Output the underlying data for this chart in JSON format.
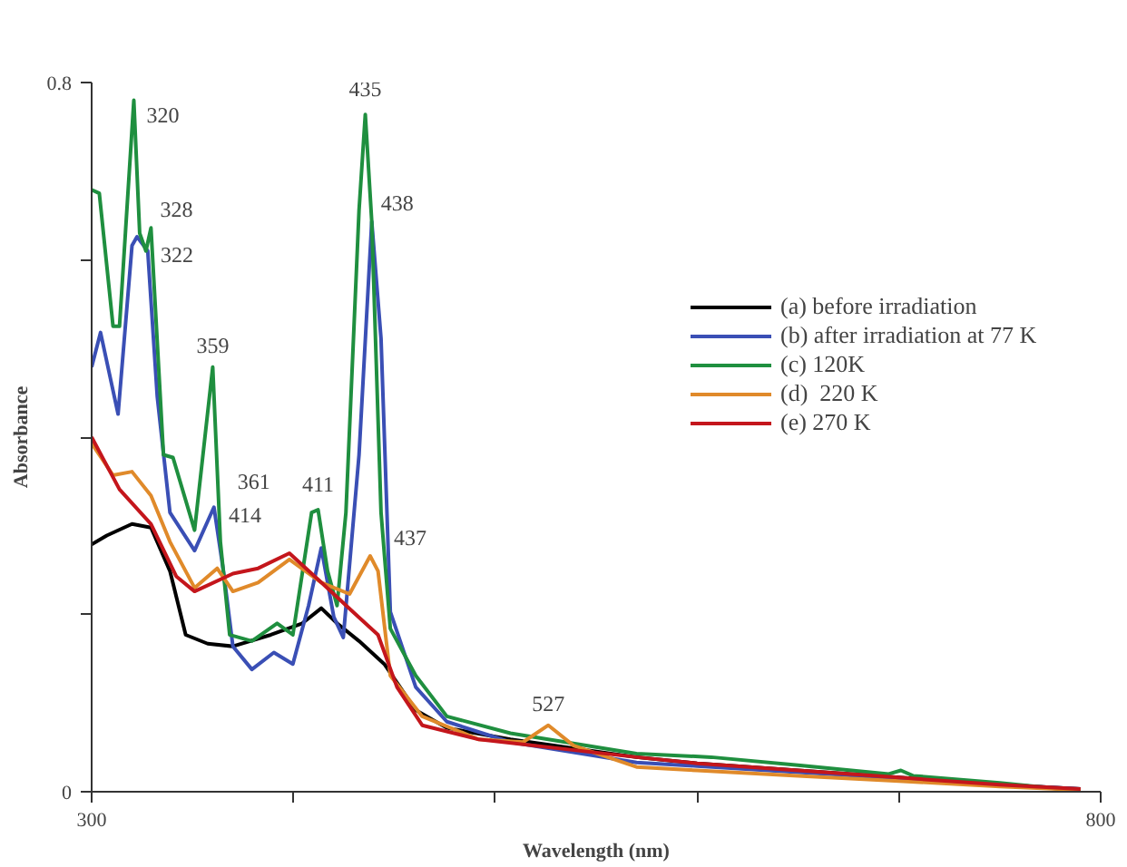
{
  "chart_data": {
    "type": "line",
    "xlabel": "Wavelength (nm)",
    "ylabel": "Absorbance",
    "xlim": [
      300,
      800
    ],
    "ylim": [
      0,
      0.8
    ],
    "xticks": [
      300,
      {
        "value": 400,
        "label": null
      },
      {
        "value": 500,
        "label": null
      },
      {
        "value": 600,
        "label": null
      },
      {
        "value": 700,
        "label": null
      },
      800
    ],
    "yticks": [
      0,
      {
        "value": 0.2,
        "label": null
      },
      {
        "value": 0.4,
        "label": null
      },
      {
        "value": 0.6,
        "label": null
      },
      0.8
    ],
    "grid": false,
    "legend": "right",
    "marker": "none",
    "line_style": "solid",
    "series": [
      {
        "name": "(a) before irradiation",
        "color": "#000000",
        "x": [
          300,
          307.5,
          320,
          329.4,
          338.8,
          346.6,
          357.5,
          370,
          388.8,
          404.4,
          413.8,
          421.6,
          432.5,
          445,
          460.6,
          476,
          507.5,
          570,
          600,
          650,
          700,
          750,
          790
        ],
        "values": [
          0.279,
          0.289,
          0.302,
          0.298,
          0.249,
          0.177,
          0.167,
          0.164,
          0.177,
          0.19,
          0.207,
          0.19,
          0.17,
          0.144,
          0.092,
          0.072,
          0.059,
          0.039,
          0.032,
          0.024,
          0.016,
          0.008,
          0.003
        ]
      },
      {
        "name": "(b) after irradiation at 77 K",
        "color": "#3a4fb5",
        "x": [
          300,
          304.4,
          313.1,
          320,
          322.5,
          327.8,
          332.5,
          338.8,
          351,
          360.6,
          365.3,
          370,
          379.4,
          390.3,
          399.7,
          407.5,
          413.8,
          420,
          424.7,
          432.5,
          438.8,
          443.4,
          448,
          460.6,
          476,
          507.5,
          570,
          600,
          650,
          700,
          750,
          790
        ],
        "values": [
          0.479,
          0.518,
          0.426,
          0.616,
          0.626,
          0.61,
          0.446,
          0.315,
          0.272,
          0.321,
          0.249,
          0.164,
          0.138,
          0.157,
          0.144,
          0.21,
          0.275,
          0.197,
          0.174,
          0.38,
          0.643,
          0.511,
          0.203,
          0.118,
          0.079,
          0.056,
          0.033,
          0.029,
          0.022,
          0.015,
          0.008,
          0.003
        ]
      },
      {
        "name": "(c) 120K",
        "color": "#1f8f3f",
        "x": [
          300,
          303.8,
          310.6,
          313.8,
          320.9,
          323.8,
          326.9,
          329.4,
          335.6,
          340.3,
          351,
          360,
          363.8,
          368.4,
          379.4,
          391.9,
          399.7,
          409,
          412.2,
          416.9,
          421.6,
          426,
          432.5,
          435.6,
          438.8,
          443.4,
          448,
          460.6,
          476,
          507.5,
          570,
          607,
          650,
          695,
          701,
          707,
          750,
          785
        ],
        "values": [
          0.679,
          0.675,
          0.525,
          0.525,
          0.78,
          0.63,
          0.61,
          0.636,
          0.38,
          0.377,
          0.295,
          0.479,
          0.282,
          0.177,
          0.17,
          0.19,
          0.177,
          0.315,
          0.318,
          0.249,
          0.21,
          0.315,
          0.656,
          0.764,
          0.643,
          0.315,
          0.184,
          0.131,
          0.085,
          0.066,
          0.043,
          0.039,
          0.03,
          0.02,
          0.024,
          0.018,
          0.01,
          0.002
        ]
      },
      {
        "name": "(d)  220 K",
        "color": "#e08a2a",
        "x": [
          300,
          310.6,
          320,
          329.4,
          338.8,
          351,
          362.2,
          370,
          382.5,
          398,
          413.8,
          427.8,
          438,
          441.9,
          448,
          463.8,
          491.9,
          513.8,
          526.3,
          538.8,
          570,
          600,
          650,
          700,
          750,
          790
        ],
        "values": [
          0.393,
          0.357,
          0.361,
          0.334,
          0.282,
          0.23,
          0.252,
          0.226,
          0.236,
          0.262,
          0.236,
          0.223,
          0.266,
          0.249,
          0.131,
          0.085,
          0.059,
          0.056,
          0.075,
          0.052,
          0.028,
          0.024,
          0.018,
          0.012,
          0.006,
          0.002
        ]
      },
      {
        "name": "(e) 270 K",
        "color": "#c4161c",
        "x": [
          300,
          313.8,
          329.4,
          341.9,
          351,
          370,
          382.5,
          398,
          413.8,
          429.4,
          441.9,
          451.3,
          463.8,
          491.9,
          570,
          600,
          650,
          700,
          750,
          790
        ],
        "values": [
          0.4,
          0.341,
          0.302,
          0.243,
          0.226,
          0.246,
          0.252,
          0.269,
          0.236,
          0.203,
          0.177,
          0.118,
          0.075,
          0.059,
          0.039,
          0.032,
          0.024,
          0.016,
          0.008,
          0.003
        ]
      }
    ],
    "annotations": [
      {
        "text": "320",
        "x": 320.9,
        "y": 0.78
      },
      {
        "text": "328",
        "x": 329.4,
        "y": 0.636
      },
      {
        "text": "322",
        "x": 322.5,
        "y": 0.626
      },
      {
        "text": "359",
        "x": 360,
        "y": 0.479
      },
      {
        "text": "361",
        "x": 360.6,
        "y": 0.321
      },
      {
        "text": "411",
        "x": 412.2,
        "y": 0.318
      },
      {
        "text": "414",
        "x": 413.8,
        "y": 0.275
      },
      {
        "text": "435",
        "x": 435.6,
        "y": 0.764
      },
      {
        "text": "438",
        "x": 438.8,
        "y": 0.643
      },
      {
        "text": "437",
        "x": 438,
        "y": 0.266
      },
      {
        "text": "527",
        "x": 526.3,
        "y": 0.075
      }
    ]
  }
}
